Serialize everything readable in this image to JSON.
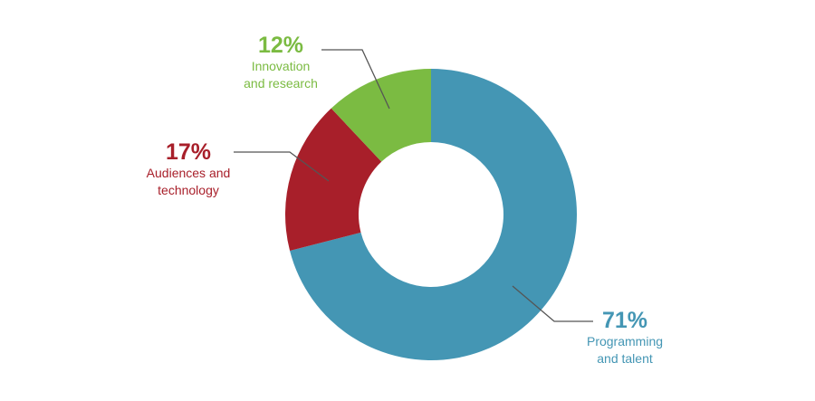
{
  "chart_data": {
    "type": "donut",
    "categories": [
      "Programming\nand talent",
      "Audiences and\ntechnology",
      "Innovation\nand research"
    ],
    "values": [
      71,
      17,
      12
    ],
    "value_labels": [
      "71%",
      "17%",
      "12%"
    ],
    "colors": [
      "#4496b4",
      "#a81f2a",
      "#7bbb42"
    ]
  }
}
